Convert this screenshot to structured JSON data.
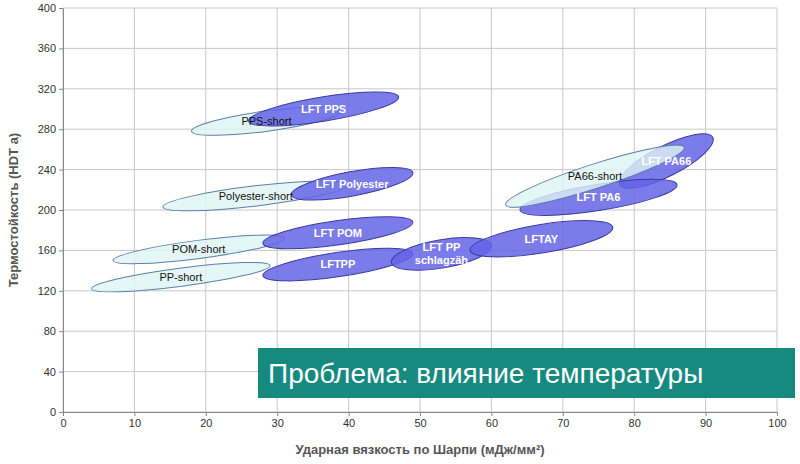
{
  "chart_data": {
    "type": "ellipse",
    "xlabel": "Ударная вязкость по Шарпи (мДж/мм²)",
    "ylabel": "Термостойкость (HDT a)",
    "annotation": "Проблема: влияние температуры",
    "xlim": [
      0,
      100
    ],
    "ylim": [
      0,
      400
    ],
    "xticks": [
      0,
      10,
      20,
      30,
      40,
      50,
      60,
      70,
      80,
      90,
      100
    ],
    "yticks": [
      0,
      40,
      80,
      120,
      160,
      200,
      240,
      280,
      320,
      360,
      400
    ],
    "grid": true,
    "series": [
      {
        "name": "PPS-short",
        "color": "#dff4f4",
        "x": [
          18,
          39
        ],
        "y": [
          278,
          298
        ],
        "height": 10
      },
      {
        "name": "Polyester-short",
        "color": "#dff4f4",
        "x": [
          14,
          40
        ],
        "y": [
          203,
          225
        ],
        "height": 10
      },
      {
        "name": "POM-short",
        "color": "#dff4f4",
        "x": [
          7,
          31
        ],
        "y": [
          150,
          172
        ],
        "height": 9
      },
      {
        "name": "PP-short",
        "color": "#dff4f4",
        "x": [
          4,
          29
        ],
        "y": [
          122,
          145
        ],
        "height": 9
      },
      {
        "name": "LFT PPS",
        "color": "#6464e6",
        "x": [
          26,
          47
        ],
        "y": [
          288,
          312
        ],
        "height": 12
      },
      {
        "name": "LFT Polyester",
        "color": "#6464e6",
        "x": [
          32,
          49
        ],
        "y": [
          215,
          237
        ],
        "height": 12
      },
      {
        "name": "LFT POM",
        "color": "#6464e6",
        "x": [
          28,
          49
        ],
        "y": [
          167,
          188
        ],
        "height": 12
      },
      {
        "name": "LFTPP",
        "color": "#6464e6",
        "x": [
          28,
          49
        ],
        "y": [
          135,
          157
        ],
        "height": 12
      },
      {
        "name": "LFT PP schlagzäh",
        "color": "#6464e6",
        "x": [
          46,
          60
        ],
        "y": [
          148,
          165
        ],
        "height": 14
      },
      {
        "name": "LFTAY",
        "color": "#6464e6",
        "x": [
          57,
          77
        ],
        "y": [
          160,
          183
        ],
        "height": 14
      },
      {
        "name": "LFT PA66",
        "color": "#6464e6",
        "x": [
          78,
          91
        ],
        "y": [
          225,
          272
        ],
        "height": 15
      },
      {
        "name": "LFT PA6",
        "color": "#6464e6",
        "x": [
          64,
          86
        ],
        "y": [
          200,
          225
        ],
        "height": 13
      },
      {
        "name": "PA66-short",
        "color": "#dff4f4",
        "x": [
          62,
          87
        ],
        "y": [
          205,
          262
        ],
        "height": 12
      }
    ]
  }
}
